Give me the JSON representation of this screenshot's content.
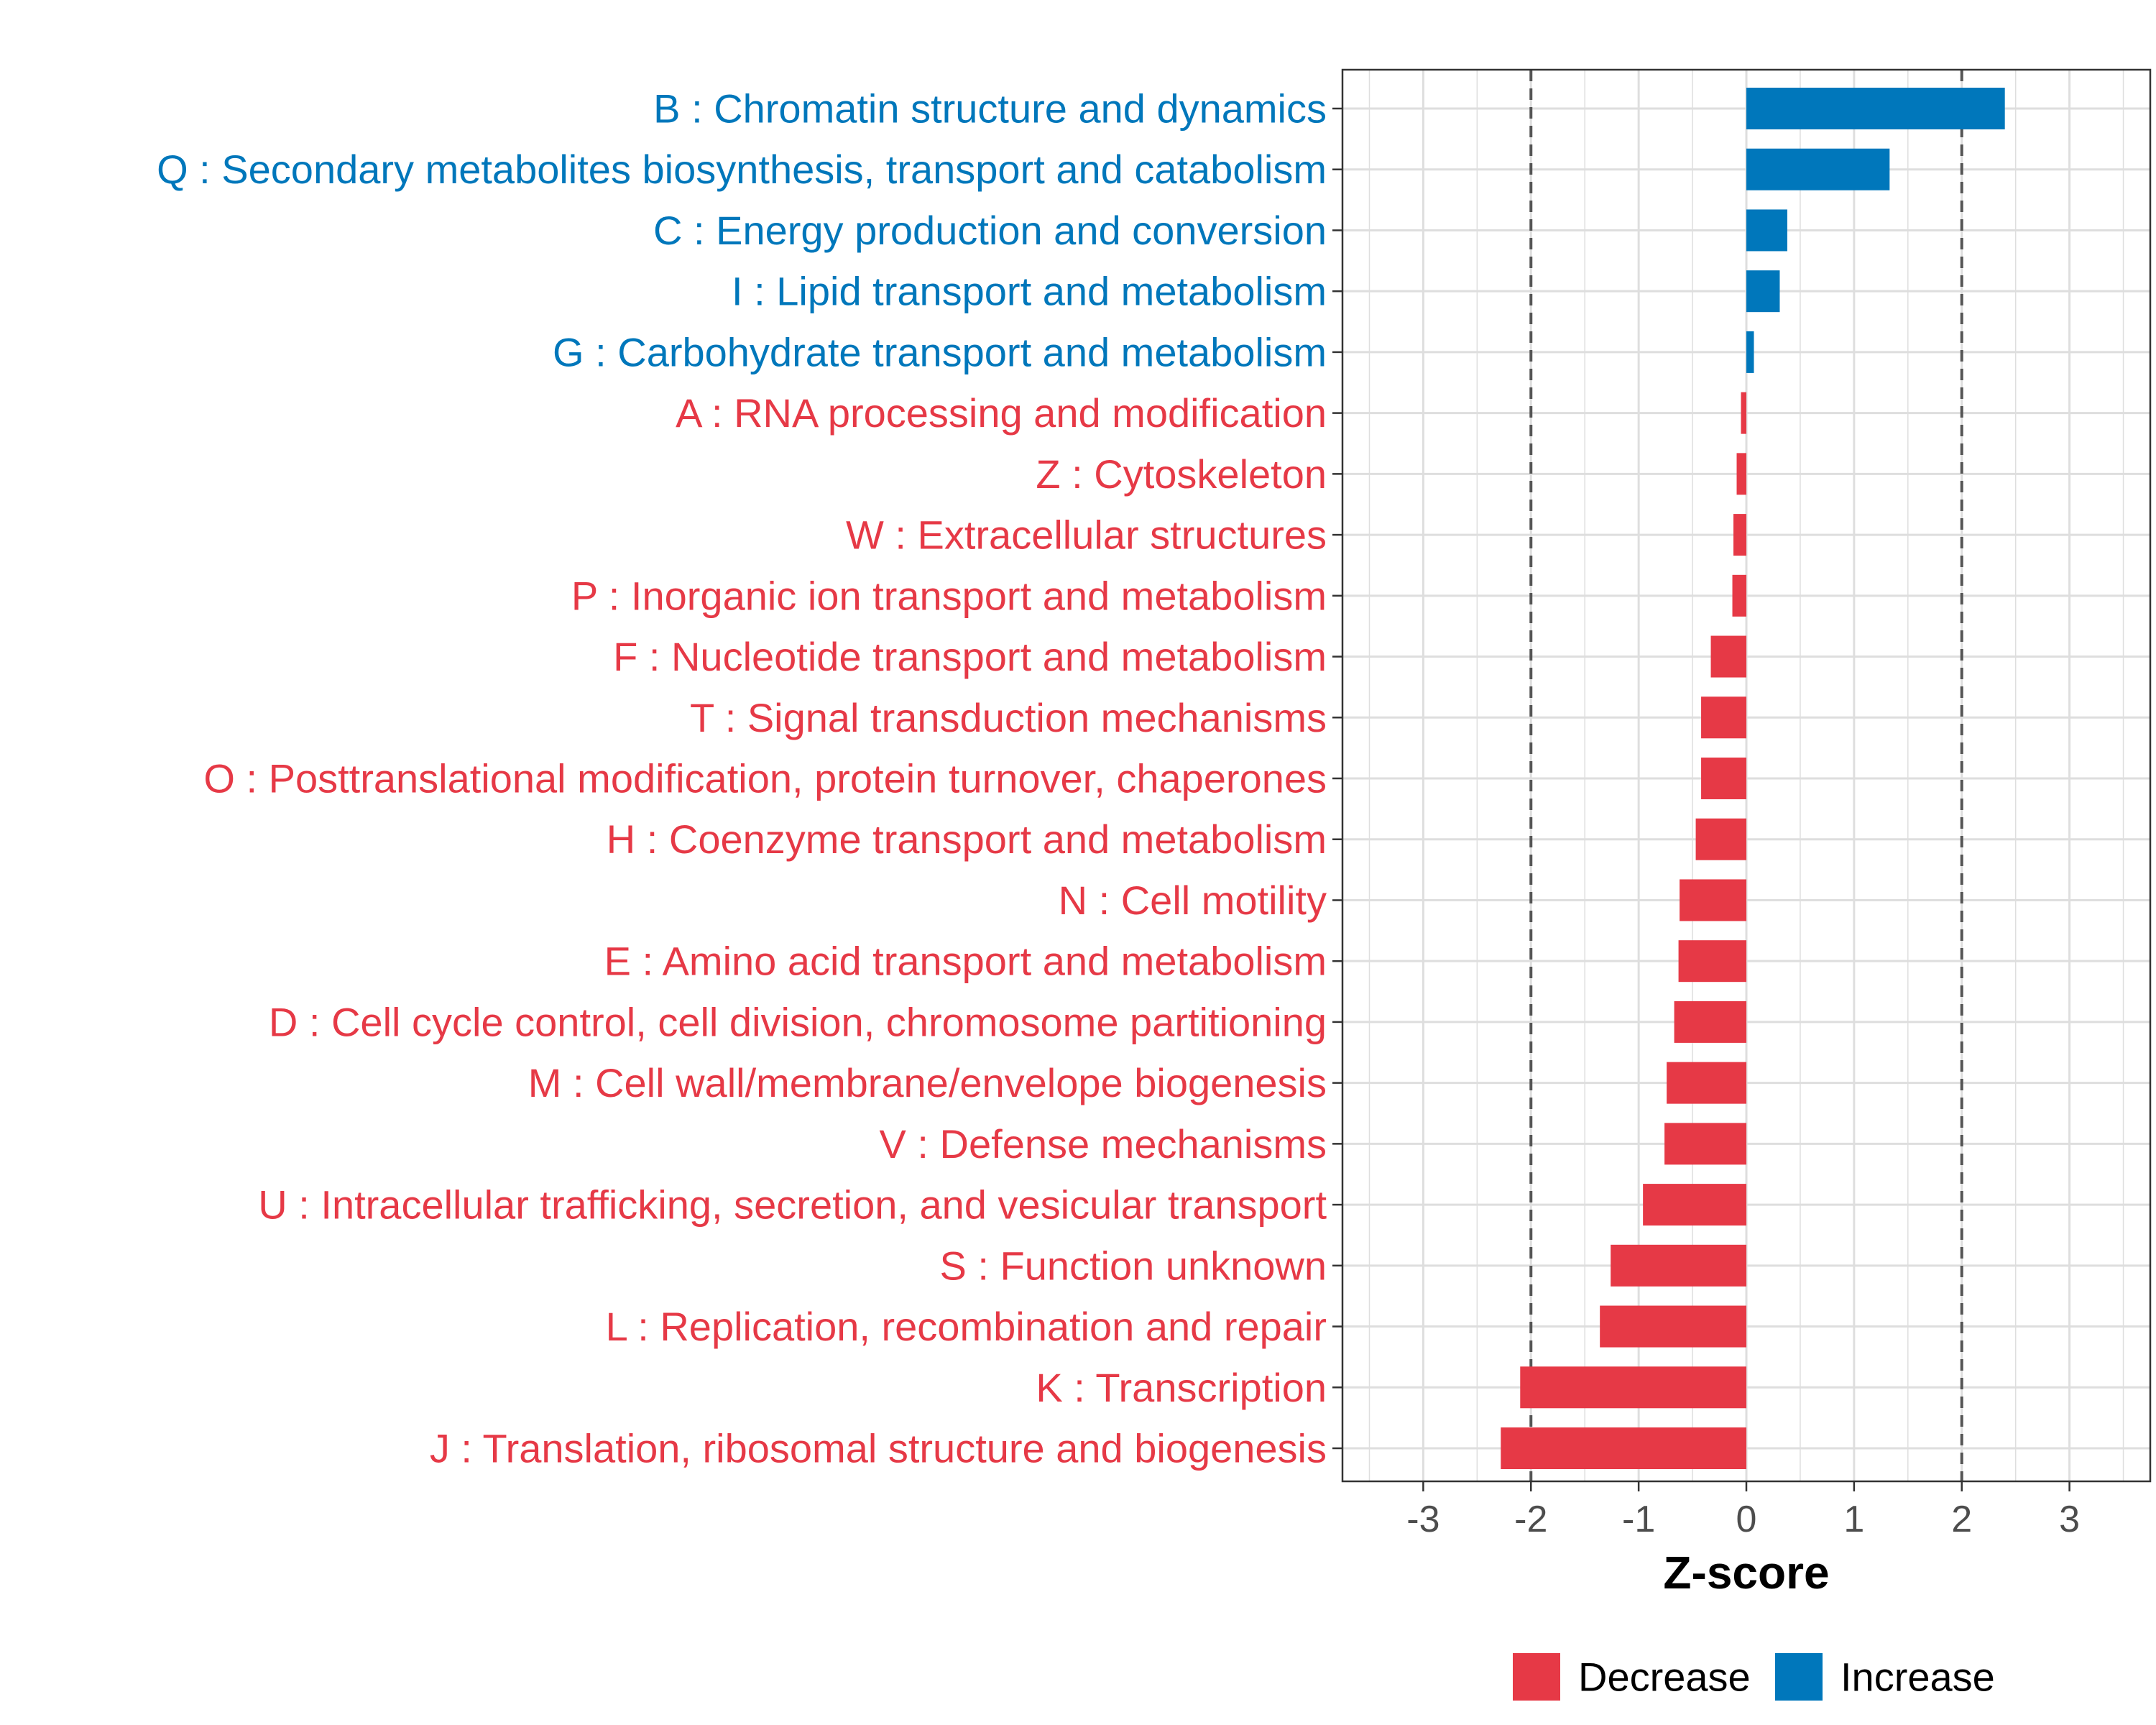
{
  "chart_data": {
    "type": "bar",
    "orientation": "horizontal",
    "title": "",
    "xlabel": "Z-score",
    "ylabel": "",
    "xlim": [
      -3.75,
      3.75
    ],
    "xticks": [
      "-3",
      "-2",
      "-1",
      "0",
      "1",
      "2",
      "3"
    ],
    "xtick_values": [
      -3,
      -2,
      -1,
      0,
      1,
      2,
      3
    ],
    "reference_lines": [
      -2,
      2
    ],
    "grid": true,
    "legend_position": "bottom",
    "colors": {
      "Decrease": "#e63946",
      "Increase": "#0077bb"
    },
    "legend": [
      {
        "label": "Decrease",
        "color": "#e63946"
      },
      {
        "label": "Increase",
        "color": "#0077bb"
      }
    ],
    "categories": [
      "B : Chromatin structure and dynamics",
      "Q : Secondary metabolites biosynthesis, transport and catabolism",
      "C : Energy production and conversion",
      "I : Lipid transport and metabolism",
      "G : Carbohydrate transport and metabolism",
      "A : RNA processing and modification",
      "Z : Cytoskeleton",
      "W : Extracellular structures",
      "P : Inorganic ion transport and metabolism",
      "F : Nucleotide transport and metabolism",
      "T : Signal transduction mechanisms",
      "O : Posttranslational modification, protein turnover, chaperones",
      "H : Coenzyme transport and metabolism",
      "N : Cell motility",
      "E : Amino acid transport and metabolism",
      "D : Cell cycle control, cell division, chromosome partitioning",
      "M : Cell wall/membrane/envelope biogenesis",
      "V : Defense mechanisms",
      "U : Intracellular trafficking, secretion, and vesicular transport",
      "S : Function unknown",
      "L : Replication, recombination and repair",
      "K : Transcription",
      "J : Translation, ribosomal structure and biogenesis"
    ],
    "values": [
      2.4,
      1.33,
      0.38,
      0.31,
      0.07,
      -0.05,
      -0.09,
      -0.12,
      -0.13,
      -0.33,
      -0.42,
      -0.42,
      -0.47,
      -0.62,
      -0.63,
      -0.67,
      -0.74,
      -0.76,
      -0.96,
      -1.26,
      -1.36,
      -2.1,
      -2.28
    ],
    "groups": [
      "Increase",
      "Increase",
      "Increase",
      "Increase",
      "Increase",
      "Decrease",
      "Decrease",
      "Decrease",
      "Decrease",
      "Decrease",
      "Decrease",
      "Decrease",
      "Decrease",
      "Decrease",
      "Decrease",
      "Decrease",
      "Decrease",
      "Decrease",
      "Decrease",
      "Decrease",
      "Decrease",
      "Decrease",
      "Decrease"
    ]
  }
}
